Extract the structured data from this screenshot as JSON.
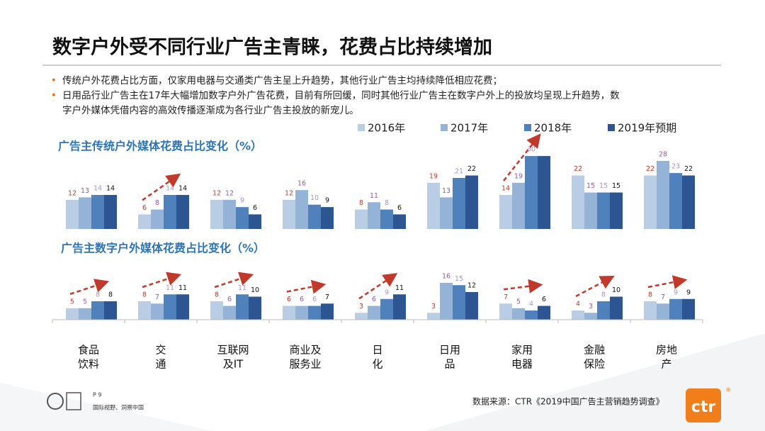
{
  "header": {
    "title": "数字户外受不同行业广告主青睐，花费占比持续增加"
  },
  "bullets": [
    "传统户外花费占比方面，仅家用电器与交通类广告主呈上升趋势，其他行业广告主均持续降低相应花费；",
    "日用品行业广告主在17年大幅增加数字户外广告花费，目前有所回缓，同时其他行业广告主在数字户外上的投放均呈现上升趋势，数",
    "字户外媒体凭借内容的高效传播逐渐成为各行业广告主投放的新宠儿。"
  ],
  "chart_data": [
    {
      "type": "bar",
      "title": "广告主传统户外媒体花费占比变化（%）",
      "series": [
        {
          "name": "2016年",
          "color": "#b9cde5",
          "label_color": "#c0392b",
          "values": [
            12,
            6,
            12,
            12,
            8,
            19,
            14,
            22,
            22
          ]
        },
        {
          "name": "2017年",
          "color": "#95b3d7",
          "label_color": "#8e5ba6",
          "values": [
            13,
            8,
            12,
            16,
            11,
            13,
            19,
            15,
            28
          ]
        },
        {
          "name": "2018年",
          "color": "#4f81bd",
          "label_color": "#a993c6",
          "values": [
            14,
            14,
            9,
            10,
            8,
            21,
            30,
            15,
            23
          ]
        },
        {
          "name": "2019年预期",
          "color": "#2c5592",
          "label_color": "#111111",
          "values": [
            14,
            14,
            6,
            9,
            6,
            22,
            30,
            15,
            22
          ],
          "value_labels": [
            14,
            14,
            6,
            9,
            6,
            22,
            null,
            15,
            22
          ]
        }
      ]
    },
    {
      "type": "bar",
      "title": "广告主数字户外媒体花费占比变化（%）",
      "categories": [
        [
          "食品",
          "饮料"
        ],
        [
          "交",
          "通"
        ],
        [
          "互联网",
          "及IT"
        ],
        [
          "商业及",
          "服务业"
        ],
        [
          "日",
          "化"
        ],
        [
          "日用",
          "品"
        ],
        [
          "家用",
          "电器"
        ],
        [
          "金融",
          "保险"
        ],
        [
          "房地",
          "产"
        ]
      ],
      "series": [
        {
          "color": "#b9cde5",
          "label_color": "#c0392b",
          "values": [
            5,
            8,
            8,
            6,
            3,
            3,
            7,
            4,
            8
          ]
        },
        {
          "color": "#95b3d7",
          "label_color": "#8e5ba6",
          "values": [
            5,
            7,
            6,
            6,
            6,
            16,
            5,
            3,
            7
          ]
        },
        {
          "color": "#4f81bd",
          "label_color": "#a993c6",
          "values": [
            8,
            11,
            11,
            6,
            9,
            15,
            4,
            8,
            9
          ]
        },
        {
          "color": "#2c5592",
          "label_color": "#111111",
          "values": [
            8,
            11,
            10,
            7,
            11,
            12,
            6,
            10,
            9
          ]
        }
      ]
    }
  ],
  "footer": {
    "page": "P 9",
    "slogan": "国际视野、洞察中国",
    "source": "数据来源：CTR《2019中国广告主营销趋势调查》",
    "logo": "ctr",
    "logo_mark": "®"
  }
}
